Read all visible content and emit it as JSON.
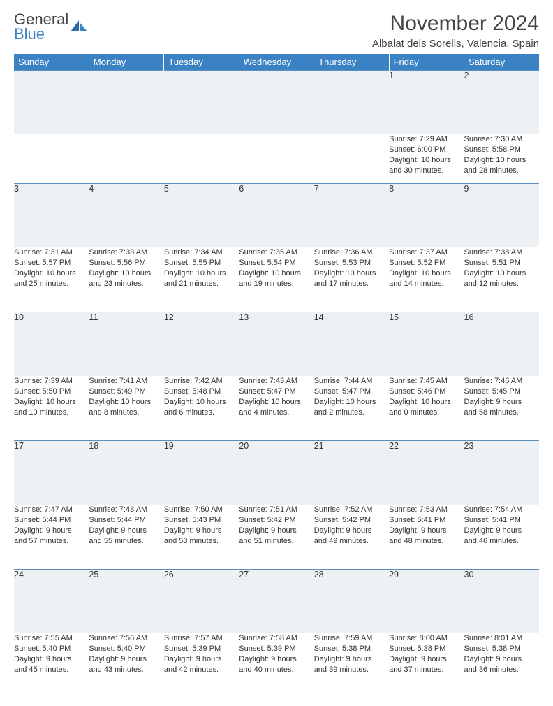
{
  "logo": {
    "word1": "General",
    "word2": "Blue"
  },
  "title": "November 2024",
  "location": "Albalat dels Sorells, Valencia, Spain",
  "colors": {
    "header_bg": "#3b82c4",
    "header_text": "#ffffff",
    "daynum_bg": "#eef1f4",
    "daynum_border_top": "#5b8fbf",
    "body_text": "#333333",
    "logo_gray": "#444444",
    "logo_blue": "#3b7fc4"
  },
  "day_headers": [
    "Sunday",
    "Monday",
    "Tuesday",
    "Wednesday",
    "Thursday",
    "Friday",
    "Saturday"
  ],
  "weeks": [
    {
      "nums": [
        "",
        "",
        "",
        "",
        "",
        "1",
        "2"
      ],
      "cells": [
        {},
        {},
        {},
        {},
        {},
        {
          "sunrise": "Sunrise: 7:29 AM",
          "sunset": "Sunset: 6:00 PM",
          "day1": "Daylight: 10 hours",
          "day2": "and 30 minutes."
        },
        {
          "sunrise": "Sunrise: 7:30 AM",
          "sunset": "Sunset: 5:58 PM",
          "day1": "Daylight: 10 hours",
          "day2": "and 28 minutes."
        }
      ]
    },
    {
      "nums": [
        "3",
        "4",
        "5",
        "6",
        "7",
        "8",
        "9"
      ],
      "cells": [
        {
          "sunrise": "Sunrise: 7:31 AM",
          "sunset": "Sunset: 5:57 PM",
          "day1": "Daylight: 10 hours",
          "day2": "and 25 minutes."
        },
        {
          "sunrise": "Sunrise: 7:33 AM",
          "sunset": "Sunset: 5:56 PM",
          "day1": "Daylight: 10 hours",
          "day2": "and 23 minutes."
        },
        {
          "sunrise": "Sunrise: 7:34 AM",
          "sunset": "Sunset: 5:55 PM",
          "day1": "Daylight: 10 hours",
          "day2": "and 21 minutes."
        },
        {
          "sunrise": "Sunrise: 7:35 AM",
          "sunset": "Sunset: 5:54 PM",
          "day1": "Daylight: 10 hours",
          "day2": "and 19 minutes."
        },
        {
          "sunrise": "Sunrise: 7:36 AM",
          "sunset": "Sunset: 5:53 PM",
          "day1": "Daylight: 10 hours",
          "day2": "and 17 minutes."
        },
        {
          "sunrise": "Sunrise: 7:37 AM",
          "sunset": "Sunset: 5:52 PM",
          "day1": "Daylight: 10 hours",
          "day2": "and 14 minutes."
        },
        {
          "sunrise": "Sunrise: 7:38 AM",
          "sunset": "Sunset: 5:51 PM",
          "day1": "Daylight: 10 hours",
          "day2": "and 12 minutes."
        }
      ]
    },
    {
      "nums": [
        "10",
        "11",
        "12",
        "13",
        "14",
        "15",
        "16"
      ],
      "cells": [
        {
          "sunrise": "Sunrise: 7:39 AM",
          "sunset": "Sunset: 5:50 PM",
          "day1": "Daylight: 10 hours",
          "day2": "and 10 minutes."
        },
        {
          "sunrise": "Sunrise: 7:41 AM",
          "sunset": "Sunset: 5:49 PM",
          "day1": "Daylight: 10 hours",
          "day2": "and 8 minutes."
        },
        {
          "sunrise": "Sunrise: 7:42 AM",
          "sunset": "Sunset: 5:48 PM",
          "day1": "Daylight: 10 hours",
          "day2": "and 6 minutes."
        },
        {
          "sunrise": "Sunrise: 7:43 AM",
          "sunset": "Sunset: 5:47 PM",
          "day1": "Daylight: 10 hours",
          "day2": "and 4 minutes."
        },
        {
          "sunrise": "Sunrise: 7:44 AM",
          "sunset": "Sunset: 5:47 PM",
          "day1": "Daylight: 10 hours",
          "day2": "and 2 minutes."
        },
        {
          "sunrise": "Sunrise: 7:45 AM",
          "sunset": "Sunset: 5:46 PM",
          "day1": "Daylight: 10 hours",
          "day2": "and 0 minutes."
        },
        {
          "sunrise": "Sunrise: 7:46 AM",
          "sunset": "Sunset: 5:45 PM",
          "day1": "Daylight: 9 hours",
          "day2": "and 58 minutes."
        }
      ]
    },
    {
      "nums": [
        "17",
        "18",
        "19",
        "20",
        "21",
        "22",
        "23"
      ],
      "cells": [
        {
          "sunrise": "Sunrise: 7:47 AM",
          "sunset": "Sunset: 5:44 PM",
          "day1": "Daylight: 9 hours",
          "day2": "and 57 minutes."
        },
        {
          "sunrise": "Sunrise: 7:48 AM",
          "sunset": "Sunset: 5:44 PM",
          "day1": "Daylight: 9 hours",
          "day2": "and 55 minutes."
        },
        {
          "sunrise": "Sunrise: 7:50 AM",
          "sunset": "Sunset: 5:43 PM",
          "day1": "Daylight: 9 hours",
          "day2": "and 53 minutes."
        },
        {
          "sunrise": "Sunrise: 7:51 AM",
          "sunset": "Sunset: 5:42 PM",
          "day1": "Daylight: 9 hours",
          "day2": "and 51 minutes."
        },
        {
          "sunrise": "Sunrise: 7:52 AM",
          "sunset": "Sunset: 5:42 PM",
          "day1": "Daylight: 9 hours",
          "day2": "and 49 minutes."
        },
        {
          "sunrise": "Sunrise: 7:53 AM",
          "sunset": "Sunset: 5:41 PM",
          "day1": "Daylight: 9 hours",
          "day2": "and 48 minutes."
        },
        {
          "sunrise": "Sunrise: 7:54 AM",
          "sunset": "Sunset: 5:41 PM",
          "day1": "Daylight: 9 hours",
          "day2": "and 46 minutes."
        }
      ]
    },
    {
      "nums": [
        "24",
        "25",
        "26",
        "27",
        "28",
        "29",
        "30"
      ],
      "cells": [
        {
          "sunrise": "Sunrise: 7:55 AM",
          "sunset": "Sunset: 5:40 PM",
          "day1": "Daylight: 9 hours",
          "day2": "and 45 minutes."
        },
        {
          "sunrise": "Sunrise: 7:56 AM",
          "sunset": "Sunset: 5:40 PM",
          "day1": "Daylight: 9 hours",
          "day2": "and 43 minutes."
        },
        {
          "sunrise": "Sunrise: 7:57 AM",
          "sunset": "Sunset: 5:39 PM",
          "day1": "Daylight: 9 hours",
          "day2": "and 42 minutes."
        },
        {
          "sunrise": "Sunrise: 7:58 AM",
          "sunset": "Sunset: 5:39 PM",
          "day1": "Daylight: 9 hours",
          "day2": "and 40 minutes."
        },
        {
          "sunrise": "Sunrise: 7:59 AM",
          "sunset": "Sunset: 5:38 PM",
          "day1": "Daylight: 9 hours",
          "day2": "and 39 minutes."
        },
        {
          "sunrise": "Sunrise: 8:00 AM",
          "sunset": "Sunset: 5:38 PM",
          "day1": "Daylight: 9 hours",
          "day2": "and 37 minutes."
        },
        {
          "sunrise": "Sunrise: 8:01 AM",
          "sunset": "Sunset: 5:38 PM",
          "day1": "Daylight: 9 hours",
          "day2": "and 36 minutes."
        }
      ]
    }
  ]
}
